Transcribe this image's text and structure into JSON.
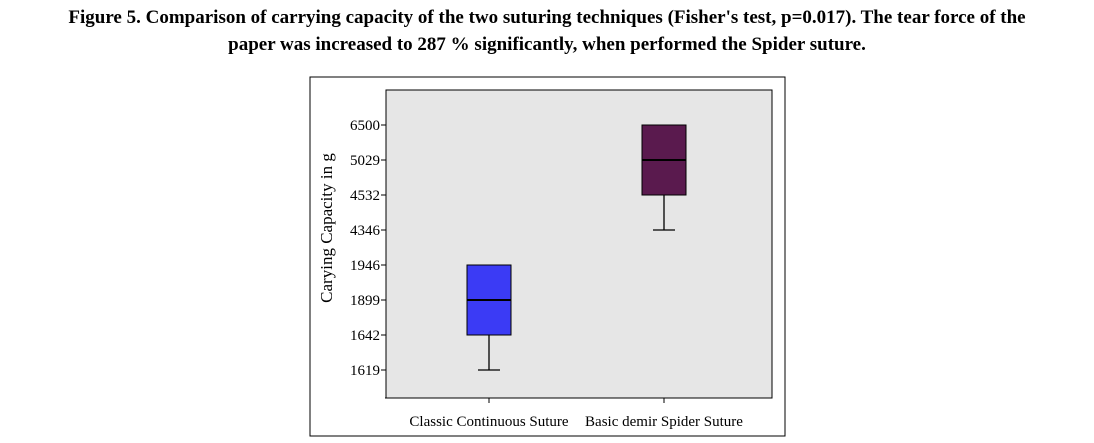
{
  "caption": {
    "line1": "Figure 5. Comparison of carrying capacity of the two suturing techniques (Fisher's test, p=0.017). The tear force of the",
    "line2": "paper was increased to 287 % significantly, when performed the Spider suture."
  },
  "chart_data": {
    "type": "boxplot",
    "ylabel": "Carying Capacity in g",
    "y_ticks": [
      "1619",
      "1642",
      "1899",
      "1946",
      "4346",
      "4532",
      "5029",
      "6500"
    ],
    "y_scale": "ordinal (tick labels unevenly spaced numerically)",
    "grid": false,
    "background": "#e6e6e6",
    "categories": [
      "Classic Continuous Suture",
      "Basic demir Spider Suture"
    ],
    "boxes": [
      {
        "category": "Classic Continuous Suture",
        "whisker_low": 1619,
        "q1": 1642,
        "median": 1899,
        "q3": 1946,
        "whisker_high": 1946,
        "color": "#3b3bf5"
      },
      {
        "category": "Basic demir Spider Suture",
        "whisker_low": 4346,
        "q1": 4532,
        "median": 5029,
        "q3": 6500,
        "whisker_high": 6500,
        "color": "#5a1a4e"
      }
    ]
  }
}
